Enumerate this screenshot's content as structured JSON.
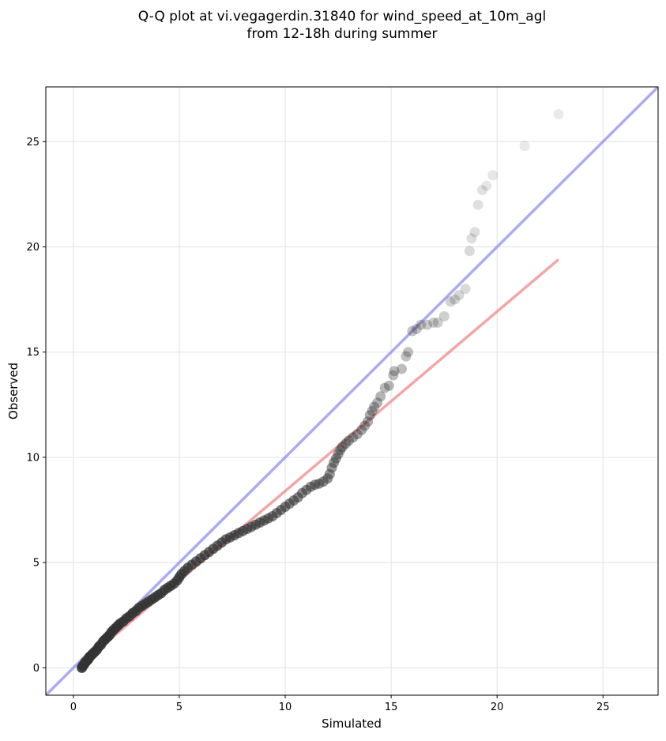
{
  "chart_data": {
    "type": "scatter",
    "title": "Q-Q plot at vi.vegagerdin.31840 for wind_speed_at_10m_agl\nfrom 12-18h during summer",
    "xlabel": "Simulated",
    "ylabel": "Observed",
    "xlim": [
      -1.3,
      27.6
    ],
    "ylim": [
      -1.3,
      27.6
    ],
    "xticks": [
      0,
      5,
      10,
      15,
      20,
      25
    ],
    "yticks": [
      0,
      5,
      10,
      15,
      20,
      25
    ],
    "grid": true,
    "reference_line": {
      "slope": 1,
      "intercept": 0,
      "color": "#8888ee"
    },
    "fit_line": {
      "x": [
        0.5,
        22.9
      ],
      "y": [
        0.3,
        19.4
      ],
      "color": "#ee8888"
    },
    "colors": {
      "points": "#333333",
      "identity": "#8888ee",
      "fit": "#ee8888",
      "grid": "#e6e6e6"
    },
    "points": [
      [
        0.4,
        0.0
      ],
      [
        0.45,
        0.1
      ],
      [
        0.5,
        0.15
      ],
      [
        0.55,
        0.25
      ],
      [
        0.6,
        0.3
      ],
      [
        0.65,
        0.35
      ],
      [
        0.7,
        0.4
      ],
      [
        0.75,
        0.5
      ],
      [
        0.8,
        0.55
      ],
      [
        0.9,
        0.65
      ],
      [
        1.0,
        0.75
      ],
      [
        1.1,
        0.85
      ],
      [
        1.2,
        1.0
      ],
      [
        1.3,
        1.1
      ],
      [
        1.4,
        1.25
      ],
      [
        1.5,
        1.35
      ],
      [
        1.6,
        1.45
      ],
      [
        1.7,
        1.55
      ],
      [
        1.8,
        1.7
      ],
      [
        1.9,
        1.8
      ],
      [
        2.0,
        1.9
      ],
      [
        2.1,
        2.0
      ],
      [
        2.2,
        2.1
      ],
      [
        2.35,
        2.2
      ],
      [
        2.5,
        2.35
      ],
      [
        2.65,
        2.45
      ],
      [
        2.8,
        2.6
      ],
      [
        2.95,
        2.7
      ],
      [
        3.1,
        2.85
      ],
      [
        3.25,
        2.95
      ],
      [
        3.4,
        3.05
      ],
      [
        3.55,
        3.15
      ],
      [
        3.7,
        3.25
      ],
      [
        3.85,
        3.35
      ],
      [
        4.0,
        3.45
      ],
      [
        4.15,
        3.55
      ],
      [
        4.3,
        3.7
      ],
      [
        4.45,
        3.8
      ],
      [
        4.6,
        3.9
      ],
      [
        4.75,
        4.0
      ],
      [
        4.9,
        4.15
      ],
      [
        5.0,
        4.3
      ],
      [
        5.1,
        4.45
      ],
      [
        5.25,
        4.6
      ],
      [
        5.4,
        4.75
      ],
      [
        5.6,
        4.9
      ],
      [
        5.8,
        5.05
      ],
      [
        6.0,
        5.2
      ],
      [
        6.2,
        5.35
      ],
      [
        6.4,
        5.5
      ],
      [
        6.6,
        5.65
      ],
      [
        6.8,
        5.8
      ],
      [
        7.0,
        5.95
      ],
      [
        7.2,
        6.1
      ],
      [
        7.4,
        6.2
      ],
      [
        7.6,
        6.3
      ],
      [
        7.8,
        6.4
      ],
      [
        8.0,
        6.5
      ],
      [
        8.2,
        6.6
      ],
      [
        8.4,
        6.7
      ],
      [
        8.6,
        6.8
      ],
      [
        8.8,
        6.9
      ],
      [
        9.0,
        7.0
      ],
      [
        9.2,
        7.1
      ],
      [
        9.4,
        7.2
      ],
      [
        9.6,
        7.35
      ],
      [
        9.8,
        7.5
      ],
      [
        10.0,
        7.65
      ],
      [
        10.2,
        7.8
      ],
      [
        10.4,
        7.95
      ],
      [
        10.6,
        8.1
      ],
      [
        10.8,
        8.3
      ],
      [
        11.0,
        8.45
      ],
      [
        11.2,
        8.6
      ],
      [
        11.4,
        8.7
      ],
      [
        11.6,
        8.75
      ],
      [
        11.8,
        8.85
      ],
      [
        12.0,
        9.0
      ],
      [
        12.1,
        9.2
      ],
      [
        12.2,
        9.5
      ],
      [
        12.3,
        9.75
      ],
      [
        12.4,
        9.95
      ],
      [
        12.5,
        10.15
      ],
      [
        12.6,
        10.35
      ],
      [
        12.7,
        10.5
      ],
      [
        12.85,
        10.65
      ],
      [
        13.0,
        10.8
      ],
      [
        13.2,
        10.95
      ],
      [
        13.4,
        11.1
      ],
      [
        13.6,
        11.3
      ],
      [
        13.75,
        11.5
      ],
      [
        13.9,
        11.7
      ],
      [
        14.0,
        12.0
      ],
      [
        14.1,
        12.2
      ],
      [
        14.2,
        12.4
      ],
      [
        14.35,
        12.6
      ],
      [
        14.5,
        12.9
      ],
      [
        14.7,
        13.3
      ],
      [
        14.9,
        13.4
      ],
      [
        15.1,
        13.9
      ],
      [
        15.15,
        14.1
      ],
      [
        15.5,
        14.2
      ],
      [
        15.7,
        14.8
      ],
      [
        15.8,
        15.0
      ],
      [
        16.0,
        16.0
      ],
      [
        16.2,
        16.1
      ],
      [
        16.4,
        16.3
      ],
      [
        16.7,
        16.3
      ],
      [
        17.0,
        16.4
      ],
      [
        17.2,
        16.4
      ],
      [
        17.5,
        16.7
      ],
      [
        17.8,
        17.4
      ],
      [
        18.0,
        17.5
      ],
      [
        18.2,
        17.7
      ],
      [
        18.5,
        18.0
      ],
      [
        18.7,
        19.8
      ],
      [
        18.8,
        20.4
      ],
      [
        18.95,
        20.7
      ],
      [
        19.1,
        22.0
      ],
      [
        19.3,
        22.7
      ],
      [
        19.5,
        22.9
      ],
      [
        19.8,
        23.4
      ],
      [
        21.3,
        24.8
      ],
      [
        22.9,
        26.3
      ]
    ]
  }
}
